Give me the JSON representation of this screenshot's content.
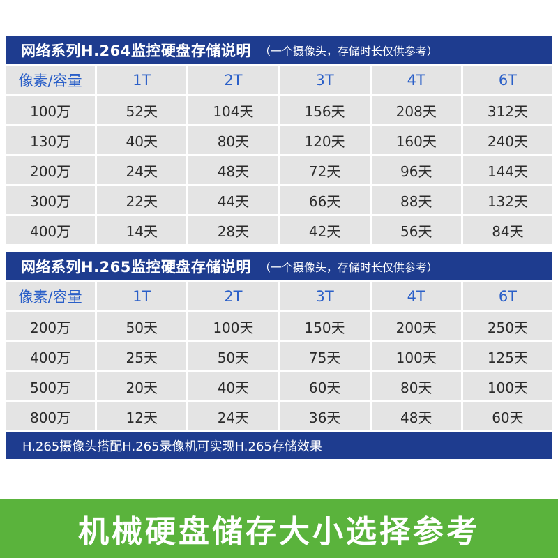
{
  "h264": {
    "title": "网络系列H.264监控硬盘存储说明",
    "note": "（一个摄像头，存储时长仅供参考）",
    "header": [
      "像素/容量",
      "1T",
      "2T",
      "3T",
      "4T",
      "6T"
    ],
    "rows": [
      [
        "100万",
        "52天",
        "104天",
        "156天",
        "208天",
        "312天"
      ],
      [
        "130万",
        "40天",
        "80天",
        "120天",
        "160天",
        "240天"
      ],
      [
        "200万",
        "24天",
        "48天",
        "72天",
        "96天",
        "144天"
      ],
      [
        "300万",
        "22天",
        "44天",
        "66天",
        "88天",
        "132天"
      ],
      [
        "400万",
        "14天",
        "28天",
        "42天",
        "56天",
        "84天"
      ]
    ]
  },
  "h265": {
    "title": "网络系列H.265监控硬盘存储说明",
    "note": "（一个摄像头，存储时长仅供参考）",
    "header": [
      "像素/容量",
      "1T",
      "2T",
      "3T",
      "4T",
      "6T"
    ],
    "rows": [
      [
        "200万",
        "50天",
        "100天",
        "150天",
        "200天",
        "250天"
      ],
      [
        "400万",
        "25天",
        "50天",
        "75天",
        "100天",
        "125天"
      ],
      [
        "500万",
        "20天",
        "40天",
        "60天",
        "80天",
        "100天"
      ],
      [
        "800万",
        "12天",
        "24天",
        "36天",
        "48天",
        "60天"
      ]
    ],
    "footnote": "H.265摄像头搭配H.265录像机可实现H.265存储效果"
  },
  "bottom_banner": "机械硬盘储存大小选择参考",
  "colors": {
    "banner_blue": "#1e3c8f",
    "header_text_blue": "#2a5fc8",
    "cell_gray": "#e4e4e4",
    "bottom_green": "#5ab33c"
  }
}
